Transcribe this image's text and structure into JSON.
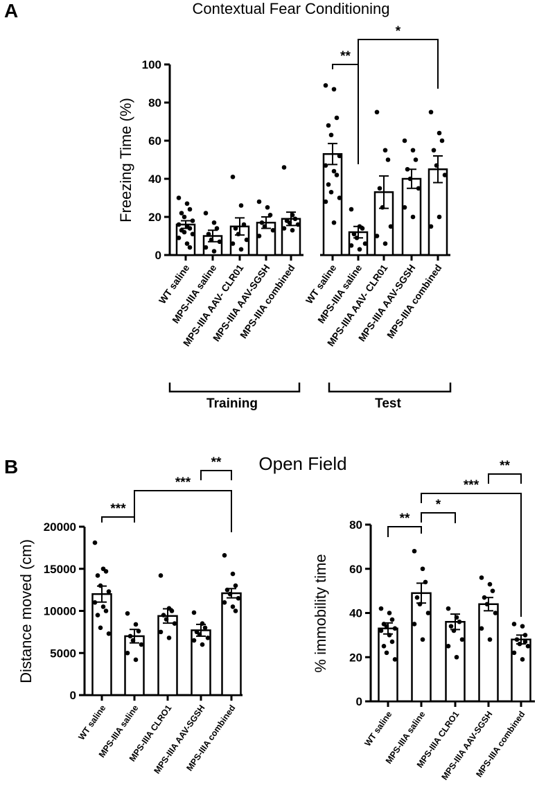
{
  "panel_a": {
    "letter": "A",
    "chart_data": {
      "type": "bar",
      "title": "Contextual Fear Conditioning",
      "ylabel": "Freezing Time (%)",
      "ylim": [
        0,
        100
      ],
      "yticks": [
        "0",
        "20",
        "40",
        "60",
        "80",
        "100"
      ],
      "categories": [
        "WT saline",
        "MPS-IIIA saline",
        "MPS-IIIA AAV- CLR01",
        "MPS-IIIA AAV-SGSH",
        "MPS-IIIA combined",
        "WT saline",
        "MPS-IIIA saline",
        "MPS-IIIA AAV- CLR01",
        "MPS-IIIA AAV-SGSH",
        "MPS-IIIA combined"
      ],
      "groups": [
        {
          "label": "Training",
          "members": [
            0,
            1,
            2,
            3,
            4
          ]
        },
        {
          "label": "Test",
          "members": [
            5,
            6,
            7,
            8,
            9
          ]
        }
      ],
      "values": [
        16,
        10,
        15,
        17,
        19,
        53,
        12,
        33,
        40,
        45
      ],
      "sem": [
        2,
        3,
        4.5,
        3,
        3.5,
        5.5,
        3,
        8.5,
        5,
        7
      ],
      "points": [
        [
          30,
          27,
          24,
          22,
          20,
          18,
          16,
          15,
          14,
          13,
          12,
          11,
          9,
          6,
          4
        ],
        [
          22,
          17,
          14,
          11,
          8,
          7,
          4,
          2
        ],
        [
          41,
          26,
          16,
          14,
          11,
          8,
          6,
          3
        ],
        [
          28,
          25,
          21,
          17,
          15,
          13,
          10
        ],
        [
          46,
          21,
          19,
          18,
          17,
          16,
          14,
          13
        ],
        [
          89,
          87,
          72,
          68,
          63,
          52,
          47,
          44,
          42,
          37,
          33,
          30,
          28,
          17
        ],
        [
          24,
          15,
          14,
          11,
          9,
          6,
          5,
          3
        ],
        [
          75,
          55,
          50,
          35,
          25,
          15,
          10,
          6
        ],
        [
          60,
          55,
          50,
          45,
          40,
          35,
          25,
          20
        ],
        [
          75,
          64,
          60,
          55,
          47,
          42,
          15,
          20
        ]
      ],
      "significance": [
        {
          "from": 5,
          "to": 6,
          "label": "**"
        },
        {
          "from": 6,
          "to": 9,
          "label": "*"
        }
      ]
    }
  },
  "panel_b": {
    "letter": "B",
    "title": "Open Field",
    "charts": [
      {
        "type": "bar",
        "ylabel": "Distance moved (cm)",
        "ylim": [
          0,
          20000
        ],
        "yticks": [
          "0",
          "5000",
          "10000",
          "15000",
          "20000"
        ],
        "categories": [
          "WT saline",
          "MPS-IIIA saline",
          "MPS-IIIA CLRO1",
          "MPS-IIIA AAV-SGSH",
          "MPS-IIIA combined"
        ],
        "values": [
          12000,
          7000,
          9400,
          7700,
          12100
        ],
        "sem": [
          950,
          800,
          850,
          700,
          550
        ],
        "points": [
          [
            18100,
            15000,
            14700,
            14200,
            13000,
            12300,
            11000,
            10500,
            10000,
            9500,
            8000,
            7300
          ],
          [
            9700,
            8400,
            7600,
            7000,
            6500,
            6000,
            5000,
            4200
          ],
          [
            14200,
            10300,
            10000,
            9500,
            9000,
            8500,
            7500,
            6800
          ],
          [
            9800,
            8500,
            8000,
            7500,
            7200,
            6800,
            6500,
            6000
          ],
          [
            16600,
            14400,
            13000,
            12500,
            12000,
            11500,
            11000,
            10500,
            10000
          ]
        ],
        "significance": [
          {
            "from": 0,
            "to": 1,
            "label": "***"
          },
          {
            "from": 1,
            "to": 4,
            "label": "***"
          },
          {
            "from": 3,
            "to": 4,
            "label": "**"
          }
        ]
      },
      {
        "type": "bar",
        "ylabel": "% immobility time",
        "ylim": [
          0,
          80
        ],
        "yticks": [
          "0",
          "20",
          "40",
          "60",
          "80"
        ],
        "categories": [
          "WT saline",
          "MPS-IIIA saline",
          "MPS-IIIA CLRO1",
          "MPS-IIIA AAV-SGSH",
          "MPS-IIIA combined"
        ],
        "values": [
          33,
          49,
          36,
          44,
          28
        ],
        "sem": [
          2.5,
          4.5,
          3.5,
          3,
          2
        ],
        "points": [
          [
            42,
            40,
            37,
            35,
            34,
            33,
            32,
            30,
            27,
            25,
            22,
            19
          ],
          [
            68,
            60,
            54,
            47,
            44,
            40,
            35,
            28
          ],
          [
            42,
            38,
            36,
            34,
            32,
            28,
            25,
            20
          ],
          [
            56,
            53,
            50,
            47,
            44,
            40,
            33,
            28
          ],
          [
            35,
            34,
            30,
            28,
            26,
            25,
            22,
            19,
            27
          ]
        ],
        "significance": [
          {
            "from": 0,
            "to": 1,
            "label": "**"
          },
          {
            "from": 1,
            "to": 2,
            "label": "*"
          },
          {
            "from": 1,
            "to": 4,
            "label": "***"
          },
          {
            "from": 3,
            "to": 4,
            "label": "**"
          }
        ]
      }
    ]
  }
}
